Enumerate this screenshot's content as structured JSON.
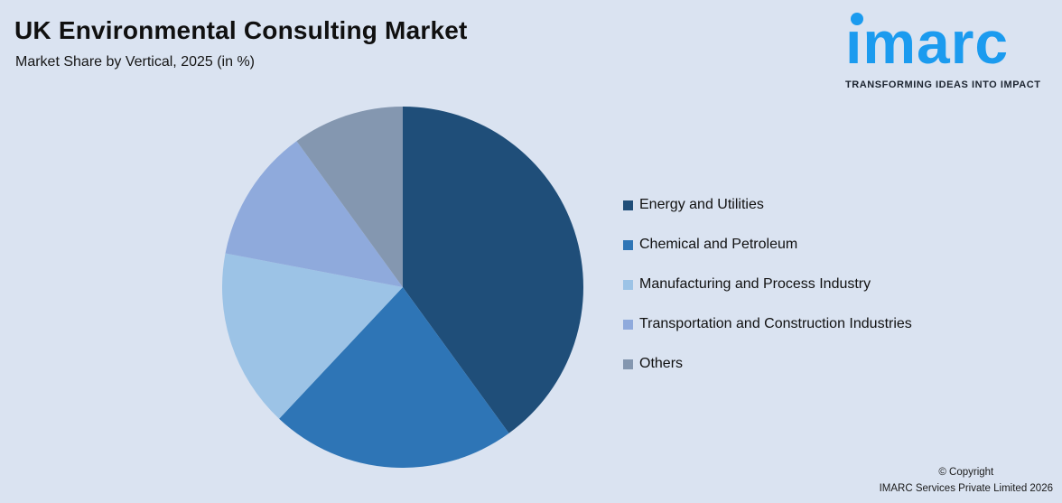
{
  "page": {
    "background_color": "#dae3f1"
  },
  "header": {
    "title": "UK Environmental Consulting Market",
    "subtitle": "Market Share by Vertical, 2025 (in %)"
  },
  "logo": {
    "wordmark": "imarc",
    "tagline": "TRANSFORMING IDEAS INTO IMPACT",
    "brand_color": "#1b9bef"
  },
  "chart_data": {
    "type": "pie",
    "title": "UK Environmental Consulting Market",
    "subtitle": "Market Share by Vertical, 2025 (in %)",
    "unit": "%",
    "start_angle_deg": 0,
    "direction": "clockwise",
    "legend_position": "right",
    "data_labels_shown": false,
    "segments": [
      {
        "id": "energy-and-utilities",
        "label": "Energy and Utilities",
        "value": 40,
        "color": "#1f4e79"
      },
      {
        "id": "chemical-and-petroleum",
        "label": "Chemical and Petroleum",
        "value": 22,
        "color": "#2e75b6"
      },
      {
        "id": "manufacturing-and-process-industry",
        "label": "Manufacturing and Process Industry",
        "value": 16,
        "color": "#9cc3e6"
      },
      {
        "id": "transportation-and-construction-industries",
        "label": "Transportation and Construction Industries",
        "value": 12,
        "color": "#8faadc"
      },
      {
        "id": "others",
        "label": "Others",
        "value": 10,
        "color": "#8497b0"
      }
    ]
  },
  "footer": {
    "copyright_line1": "© Copyright",
    "copyright_line2": "IMARC Services Private Limited 2026"
  }
}
